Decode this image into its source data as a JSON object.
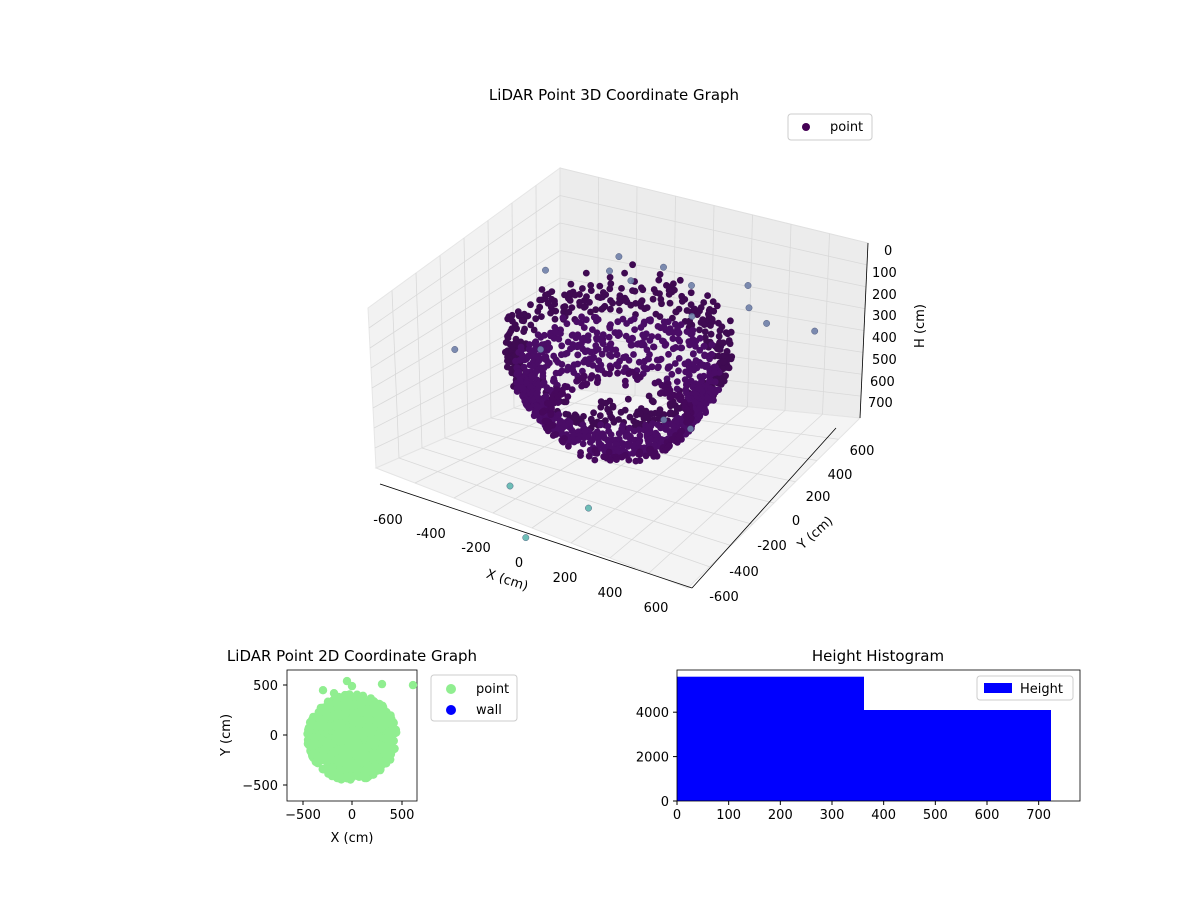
{
  "chart_data": [
    {
      "type": "scatter3d",
      "title": "LiDAR Point 3D Coordinate Graph",
      "xlabel": "X (cm)",
      "ylabel": "Y (cm)",
      "zlabel": "H (cm)",
      "xlim": [
        -700,
        700
      ],
      "ylim": [
        -700,
        700
      ],
      "zlim": [
        0,
        750
      ],
      "z_inverted": true,
      "x_ticks": [
        "-600",
        "-400",
        "-200",
        "0",
        "200",
        "400",
        "600"
      ],
      "y_ticks": [
        "-600",
        "-400",
        "-200",
        "0",
        "200",
        "400",
        "600"
      ],
      "z_ticks": [
        "0",
        "100",
        "200",
        "300",
        "400",
        "500",
        "600",
        "700"
      ],
      "legend": {
        "position": "top-right",
        "entries": [
          "point"
        ]
      },
      "colormap": "viridis",
      "series": [
        {
          "name": "point",
          "cluster": {
            "shape": "bowl",
            "center_xy": [
              0,
              0
            ],
            "radius": 450,
            "h_range": [
              100,
              720
            ],
            "color": "#440154",
            "count": 9500
          },
          "sparse_points": [
            [
              -100,
              540,
              170
            ],
            [
              50,
              500,
              180
            ],
            [
              300,
              520,
              210
            ],
            [
              610,
              500,
              200
            ],
            [
              -300,
              460,
              210
            ],
            [
              -180,
              420,
              190
            ],
            [
              120,
              380,
              230
            ],
            [
              -420,
              120,
              420
            ],
            [
              500,
              -300,
              220
            ],
            [
              350,
              -250,
              260
            ],
            [
              -500,
              300,
              180
            ],
            [
              420,
              450,
              200
            ],
            [
              -600,
              -250,
              260
            ],
            [
              -150,
              -600,
              540
            ],
            [
              150,
              -500,
              600
            ],
            [
              -50,
              -650,
              720
            ],
            [
              250,
              600,
              170
            ],
            [
              -320,
              570,
              215
            ]
          ]
        }
      ]
    },
    {
      "type": "scatter",
      "title": "LiDAR Point 2D Coordinate Graph",
      "xlabel": "X (cm)",
      "ylabel": "Y (cm)",
      "xlim": [
        -650,
        650
      ],
      "ylim": [
        -650,
        650
      ],
      "x_ticks": [
        "−500",
        "0",
        "500"
      ],
      "y_ticks": [
        "−500",
        "0",
        "500"
      ],
      "legend": {
        "position": "outside-right",
        "entries": [
          "point",
          "wall"
        ]
      },
      "series": [
        {
          "name": "point",
          "color": "#90ee90",
          "cluster": {
            "center": [
              0,
              -20
            ],
            "rx": 450,
            "ry": 430
          },
          "outliers": [
            [
              -290,
              450
            ],
            [
              -180,
              420
            ],
            [
              -50,
              540
            ],
            [
              0,
              490
            ],
            [
              300,
              510
            ],
            [
              610,
              500
            ]
          ]
        },
        {
          "name": "wall",
          "color": "#0000ff",
          "points": []
        }
      ]
    },
    {
      "type": "histogram",
      "title": "Height Histogram",
      "xlabel": "",
      "ylabel": "",
      "xlim": [
        0,
        780
      ],
      "ylim": [
        0,
        5900
      ],
      "x_ticks": [
        "0",
        "100",
        "200",
        "300",
        "400",
        "500",
        "600",
        "700"
      ],
      "y_ticks": [
        "0",
        "2000",
        "4000"
      ],
      "legend": {
        "position": "top-right",
        "entries": [
          "Height"
        ]
      },
      "bins": [
        {
          "start": 0,
          "end": 362,
          "count": 5600
        },
        {
          "start": 362,
          "end": 724,
          "count": 4100
        }
      ],
      "color": "#0000ff"
    }
  ]
}
